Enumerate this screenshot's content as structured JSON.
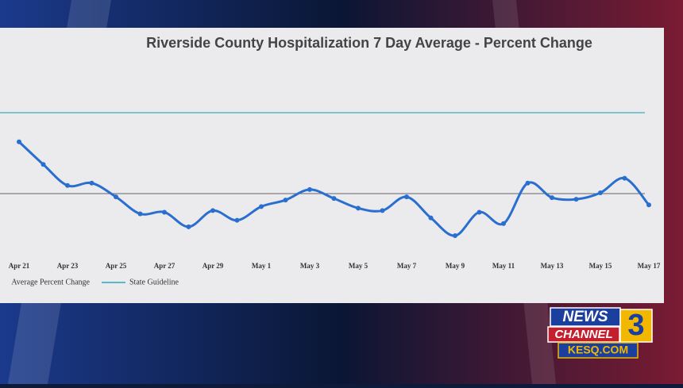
{
  "chart_data": {
    "type": "line",
    "title": "Riverside County Hospitalization 7 Day Average - Percent Change",
    "categories": [
      "Apr 21",
      null,
      "Apr 23",
      null,
      "Apr 25",
      null,
      "Apr 27",
      null,
      "Apr 29",
      null,
      "May 1",
      null,
      "May 3",
      null,
      "May 5",
      null,
      "May 7",
      null,
      "May 9",
      null,
      "May 11",
      null,
      "May 13",
      null,
      "May 15",
      null,
      "May 17"
    ],
    "series": [
      {
        "name": "Average Percent Change",
        "color": "#2a6fd0",
        "values": [
          6.4,
          3.6,
          1.0,
          1.3,
          -0.4,
          -2.5,
          -2.3,
          -4.1,
          -2.1,
          -3.3,
          -1.6,
          -0.8,
          0.5,
          -0.6,
          -1.8,
          -2.1,
          -0.4,
          -3.0,
          -5.2,
          -2.3,
          -3.7,
          1.3,
          -0.5,
          -0.7,
          0.1,
          1.9,
          -1.4
        ]
      }
    ],
    "guideline": {
      "name": "State Guideline",
      "value": 10,
      "color": "#5bb8c4"
    },
    "ylim": [
      -8,
      12
    ],
    "logo": {
      "line1": "NEWS",
      "line2": "CHANNEL",
      "number": "3",
      "site": "KESQ.COM"
    }
  }
}
